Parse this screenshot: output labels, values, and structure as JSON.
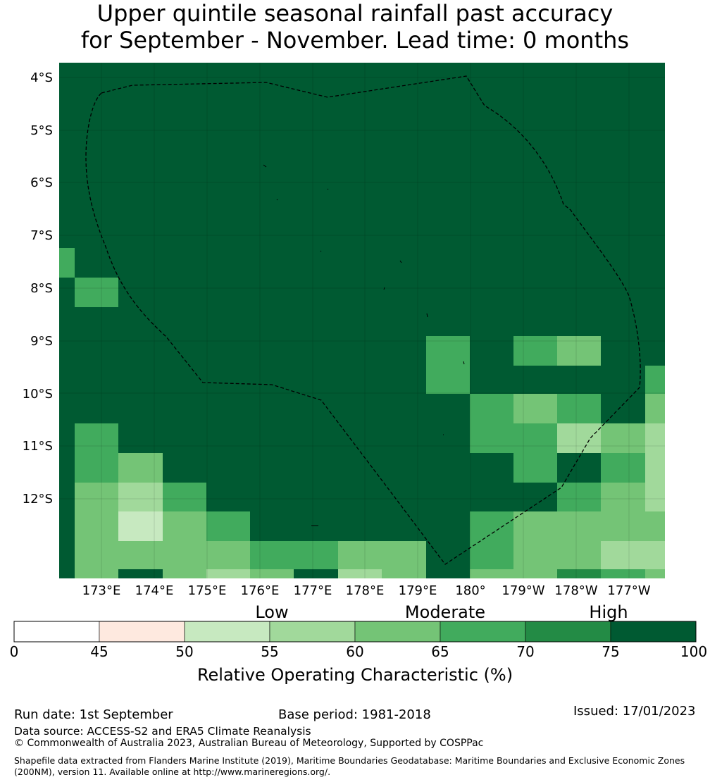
{
  "title_line1": "Upper quintile seasonal rainfall past accuracy",
  "title_line2": "for September - November. Lead time: 0 months",
  "map": {
    "lat_labels": [
      "4°S",
      "5°S",
      "6°S",
      "7°S",
      "8°S",
      "9°S",
      "10°S",
      "11°S",
      "12°S"
    ],
    "lon_labels": [
      "173°E",
      "174°E",
      "175°E",
      "176°E",
      "177°E",
      "178°E",
      "179°E",
      "180°",
      "179°W",
      "178°W",
      "177°W"
    ],
    "background_color": "#005a32",
    "boundary_style": "black dashed"
  },
  "legend": {
    "ticks": [
      "0",
      "45",
      "50",
      "55",
      "60",
      "65",
      "70",
      "75",
      "100"
    ],
    "colors": [
      "#ffffff",
      "#fee9df",
      "#c7e9c0",
      "#a1d99b",
      "#74c476",
      "#41ab5d",
      "#238b45",
      "#005a32"
    ],
    "category_low": "Low",
    "category_moderate": "Moderate",
    "category_high": "High",
    "label": "Relative Operating Characteristic (%)"
  },
  "footer": {
    "run_date": "Run date: 1st September",
    "base_period": "Base period: 1981-2018",
    "issued": "Issued: 17/01/2023",
    "data_source": "Data source: ACCESS-S2 and ERA5 Climate Reanalysis",
    "copyright": "© Commonwealth of Australia 2023, Australian Bureau of Meteorology, Supported by COSPPac",
    "shapefile": "Shapefile data extracted from Flanders Marine Institute (2019), Maritime Boundaries Geodatabase: Maritime Boundaries and Exclusive Economic Zones (200NM), version 11. Available online at http://www.marineregions.org/."
  }
}
